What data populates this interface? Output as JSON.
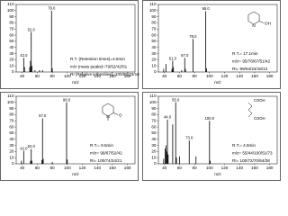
{
  "chart_data": [
    {
      "type": "bar",
      "color": "#000000",
      "xlabel": "m/z",
      "x": [
        42,
        43,
        50,
        51,
        52,
        53,
        57,
        63,
        67,
        79,
        80
      ],
      "values": [
        23,
        8,
        8,
        18,
        65,
        10,
        3,
        3,
        3,
        100,
        6
      ],
      "peak_labels": [
        "42.0",
        null,
        null,
        null,
        "52.0",
        null,
        null,
        null,
        null,
        "79.0",
        null
      ],
      "xlim": [
        32,
        190
      ],
      "xticks": [
        40,
        60,
        80,
        100,
        120,
        140,
        160,
        180
      ],
      "ylim": [
        0,
        110
      ],
      "yticks": [
        0,
        10,
        20,
        30,
        40,
        50,
        60,
        70,
        80,
        90,
        100,
        110
      ],
      "annotations": [
        "R.T. (Retention times)=4.5min",
        "m/z (mass peaks)=79/52/42/51",
        "RI (Relative intensities)=100/65/23/18"
      ],
      "structure_labels": []
    },
    {
      "type": "bar",
      "color": "#000000",
      "xlabel": "m/z",
      "x": [
        39,
        42,
        50,
        51,
        52,
        63,
        67,
        68,
        78,
        95,
        96
      ],
      "values": [
        5,
        13,
        5,
        18,
        8,
        3,
        23,
        5,
        54,
        99,
        6
      ],
      "peak_labels": [
        null,
        null,
        null,
        "51.0",
        null,
        null,
        "67.0",
        null,
        "78.0",
        "95.0",
        null
      ],
      "xlim": [
        32,
        190
      ],
      "xticks": [
        40,
        60,
        80,
        100,
        120,
        140,
        160,
        180
      ],
      "ylim": [
        0,
        110
      ],
      "yticks": [
        0,
        10,
        20,
        30,
        40,
        50,
        60,
        70,
        80,
        90,
        100,
        110
      ],
      "annotations": [
        "R.T.= 17.1min",
        "m/z= 95/78/67/51/42",
        "RI= 99/54/23/18/13"
      ],
      "structure_labels": [
        "N",
        "OH"
      ]
    },
    {
      "type": "bar",
      "color": "#000000",
      "xlabel": "m/z",
      "x": [
        39,
        42,
        51,
        52,
        53,
        66,
        67,
        68,
        80,
        99,
        100
      ],
      "values": [
        5,
        21,
        5,
        24,
        5,
        6,
        74,
        8,
        3,
        100,
        7
      ],
      "peak_labels": [
        null,
        "42.0",
        null,
        "52.0",
        null,
        null,
        "67.0",
        null,
        null,
        "99.0",
        null
      ],
      "xlim": [
        32,
        190
      ],
      "xticks": [
        40,
        60,
        80,
        100,
        120,
        140,
        160,
        180
      ],
      "ylim": [
        0,
        110
      ],
      "yticks": [
        0,
        10,
        20,
        30,
        40,
        50,
        60,
        70,
        80,
        90,
        100,
        110
      ],
      "annotations": [
        "R.T.= 9.5min",
        "m/z= 99/67/52/42",
        "RI= 100/74/24/21"
      ],
      "structure_labels": [
        "N",
        "O"
      ]
    },
    {
      "type": "bar",
      "color": "#000000",
      "xlabel": "m/z",
      "x": [
        39,
        41,
        42,
        43,
        44,
        45,
        51,
        55,
        56,
        60,
        73,
        82,
        100,
        101
      ],
      "values": [
        8,
        25,
        30,
        20,
        72,
        15,
        64,
        100,
        10,
        12,
        38,
        12,
        70,
        5
      ],
      "peak_labels": [
        null,
        null,
        null,
        null,
        "44.0",
        null,
        null,
        "55.0",
        null,
        null,
        "73.0",
        null,
        "100.0",
        null
      ],
      "xlim": [
        32,
        190
      ],
      "xticks": [
        40,
        60,
        80,
        100,
        120,
        140,
        160,
        180
      ],
      "ylim": [
        0,
        110
      ],
      "yticks": [
        0,
        10,
        20,
        30,
        40,
        50,
        60,
        70,
        80,
        90,
        100,
        110
      ],
      "annotations": [
        "R.T.= 4.6min",
        "m/z= 55/44/100/51/73",
        "RI= 100/72/70/64/38"
      ],
      "structure_labels": [
        "COOH",
        "COOH"
      ]
    }
  ]
}
